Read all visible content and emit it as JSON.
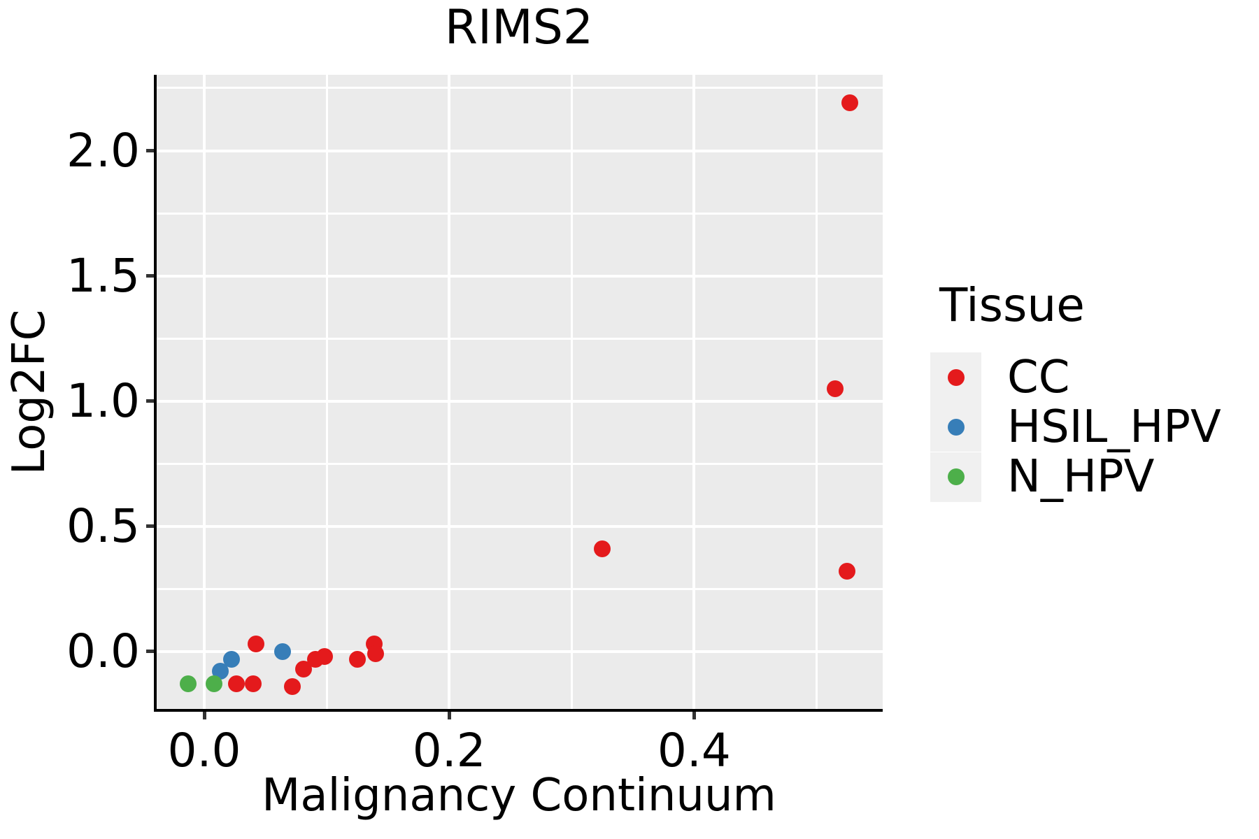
{
  "figure": {
    "title": "RIMS2"
  },
  "chart_data": {
    "type": "scatter",
    "title": "RIMS2",
    "xlabel": "Malignancy Continuum",
    "ylabel": "Log2FC",
    "xlim": [
      -0.04,
      0.554
    ],
    "ylim": [
      -0.235,
      2.303
    ],
    "grid": true,
    "panel_bg": "#EBEBEB",
    "grid_color": "#ffffff",
    "x_ticks": [
      {
        "value": 0.0,
        "label": "0.0"
      },
      {
        "value": 0.2,
        "label": "0.2"
      },
      {
        "value": 0.4,
        "label": "0.4"
      }
    ],
    "y_ticks": [
      {
        "value": 0.0,
        "label": "0.0"
      },
      {
        "value": 0.5,
        "label": "0.5"
      },
      {
        "value": 1.0,
        "label": "1.0"
      },
      {
        "value": 1.5,
        "label": "1.5"
      },
      {
        "value": 2.0,
        "label": "2.0"
      }
    ],
    "x_gridlines_minor": [
      0.1,
      0.3,
      0.5
    ],
    "y_gridlines_minor": [
      0.25,
      0.75,
      1.25,
      1.75,
      2.25
    ],
    "series": [
      {
        "name": "CC",
        "color": "#E41A1C",
        "points": [
          [
            0.026,
            -0.13
          ],
          [
            0.04,
            -0.13
          ],
          [
            0.042,
            0.03
          ],
          [
            0.072,
            -0.14
          ],
          [
            0.081,
            -0.07
          ],
          [
            0.091,
            -0.03
          ],
          [
            0.098,
            -0.02
          ],
          [
            0.125,
            -0.03
          ],
          [
            0.139,
            0.03
          ],
          [
            0.14,
            -0.01
          ],
          [
            0.325,
            0.41
          ],
          [
            0.515,
            1.05
          ],
          [
            0.525,
            0.32
          ],
          [
            0.527,
            2.19
          ]
        ]
      },
      {
        "name": "HSIL_HPV",
        "color": "#377EB8",
        "points": [
          [
            0.013,
            -0.08
          ],
          [
            0.022,
            -0.03
          ],
          [
            0.064,
            0.0
          ]
        ]
      },
      {
        "name": "N_HPV",
        "color": "#4DAF4A",
        "points": [
          [
            -0.013,
            -0.13
          ],
          [
            0.008,
            -0.13
          ]
        ]
      }
    ],
    "legend": {
      "title": "Tissue",
      "position": "right",
      "entries": [
        "CC",
        "HSIL_HPV",
        "N_HPV"
      ],
      "key_bg": "#F0F0F0"
    }
  }
}
